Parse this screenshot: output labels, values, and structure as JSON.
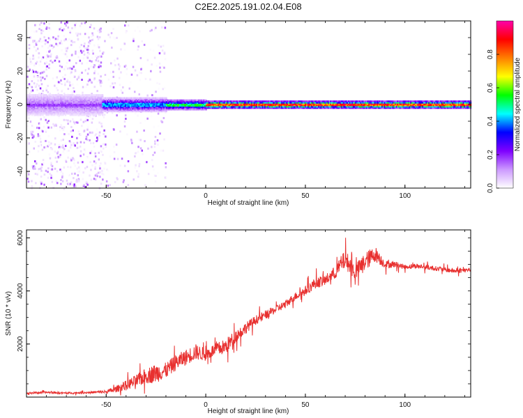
{
  "title": "C2E2.2025.191.02.04.E08",
  "chart_data": [
    {
      "type": "heatmap",
      "xlabel": "Height of straight line (km)",
      "ylabel": "Frequency (Hz)",
      "xlim": [
        -90,
        133
      ],
      "ylim": [
        -50,
        50
      ],
      "xticks": [
        -50,
        0,
        50,
        100
      ],
      "yticks": [
        -40,
        -20,
        0,
        20,
        40
      ],
      "grid": false,
      "colorbar": {
        "label": "Normalized spectral amplitude",
        "range": [
          0,
          1
        ],
        "ticks": [
          "0.0",
          "0.2",
          "0.4",
          "0.6",
          "0.8"
        ],
        "colors": [
          "#ffffff",
          "#cc99ff",
          "#7f00ff",
          "#0000ff",
          "#00ffff",
          "#00ff00",
          "#ffff00",
          "#ff7f00",
          "#ff0000",
          "#ff00aa"
        ]
      },
      "bands": [
        {
          "x": [
            -90,
            -52
          ],
          "freq_halfwidth": 7,
          "peak_amplitude": 0.2,
          "scatter_halfwidth": 50
        },
        {
          "x": [
            -52,
            -20
          ],
          "freq_halfwidth": 4,
          "peak_amplitude": 0.45,
          "scatter_halfwidth": 48
        },
        {
          "x": [
            -20,
            0
          ],
          "freq_halfwidth": 3,
          "peak_amplitude": 0.6,
          "scatter_halfwidth": 0
        },
        {
          "x": [
            0,
            133
          ],
          "freq_halfwidth": 2,
          "peak_amplitude": 0.95,
          "scatter_halfwidth": 0
        }
      ]
    },
    {
      "type": "line",
      "xlabel": "Height of straight line (km)",
      "ylabel": "SNR (10 * v/v)",
      "xlim": [
        -90,
        133
      ],
      "ylim": [
        0,
        6300
      ],
      "xticks": [
        -50,
        0,
        50,
        100
      ],
      "yticks": [
        2000,
        4000,
        6000
      ],
      "grid": false,
      "color": "#e8302f",
      "series": [
        {
          "x": [
            -90,
            -80,
            -70,
            -60,
            -50,
            -45,
            -40,
            -35,
            -30,
            -25,
            -20,
            -15,
            -10,
            -5,
            0,
            5,
            10,
            15,
            20,
            25,
            30,
            35,
            40,
            45,
            50,
            55,
            60,
            65,
            70,
            75,
            80,
            85,
            90,
            95,
            100,
            105,
            110,
            115,
            120,
            125,
            133
          ],
          "values": [
            150,
            180,
            150,
            170,
            200,
            300,
            450,
            600,
            800,
            900,
            1000,
            1300,
            1500,
            1700,
            1600,
            1800,
            1900,
            2300,
            2600,
            2900,
            3100,
            3300,
            3500,
            3800,
            4000,
            4300,
            4400,
            4700,
            5200,
            4700,
            5100,
            5400,
            5000,
            5000,
            4900,
            4950,
            4900,
            4850,
            4800,
            4750,
            4800
          ],
          "noise": [
            60,
            60,
            60,
            60,
            100,
            200,
            300,
            400,
            500,
            600,
            500,
            500,
            500,
            500,
            400,
            400,
            500,
            400,
            350,
            300,
            250,
            250,
            250,
            250,
            300,
            350,
            350,
            400,
            600,
            500,
            600,
            500,
            250,
            200,
            150,
            150,
            150,
            150,
            150,
            150,
            150
          ]
        }
      ]
    }
  ]
}
